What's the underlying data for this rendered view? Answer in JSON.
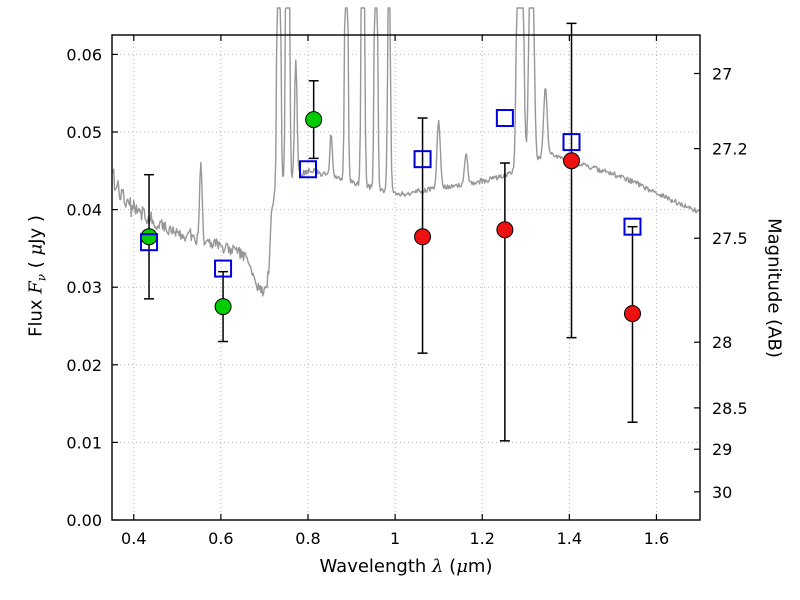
{
  "chart_data": {
    "type": "line+scatter",
    "title": "",
    "xlabel_parts": {
      "pre": "Wavelength  ",
      "sym": "λ",
      "mid": " (",
      "mu": "μ",
      "post": "m)"
    },
    "ylabel_left_parts": {
      "pre": "Flux  ",
      "f": "F",
      "sub": "ν",
      "mid": "  ( ",
      "mu": "μ",
      "post": "Jy )"
    },
    "ylabel_right": "Magnitude (AB)",
    "xlim": [
      0.35,
      1.7
    ],
    "ylim": [
      0.0,
      0.0625
    ],
    "grid": {
      "show": true,
      "style": "dotted",
      "color": "#b5b5b5"
    },
    "x_ticks": [
      {
        "value": 0.4,
        "label": "0.4"
      },
      {
        "value": 0.6,
        "label": "0.6"
      },
      {
        "value": 0.8,
        "label": "0.8"
      },
      {
        "value": 1.0,
        "label": "1"
      },
      {
        "value": 1.2,
        "label": "1.2"
      },
      {
        "value": 1.4,
        "label": "1.4"
      },
      {
        "value": 1.6,
        "label": "1.6"
      }
    ],
    "y_ticks_left": [
      {
        "value": 0.0,
        "label": "0.00"
      },
      {
        "value": 0.01,
        "label": "0.01"
      },
      {
        "value": 0.02,
        "label": "0.02"
      },
      {
        "value": 0.03,
        "label": "0.03"
      },
      {
        "value": 0.04,
        "label": "0.04"
      },
      {
        "value": 0.05,
        "label": "0.05"
      },
      {
        "value": 0.06,
        "label": "0.06"
      }
    ],
    "y_ticks_right": [
      {
        "label": "27",
        "flux": 0.05754
      },
      {
        "label": "27.2",
        "flux": 0.04786
      },
      {
        "label": "27.5",
        "flux": 0.03631
      },
      {
        "label": "28",
        "flux": 0.02291
      },
      {
        "label": "28.5",
        "flux": 0.01445
      },
      {
        "label": "29",
        "flux": 0.00912
      },
      {
        "label": "30",
        "flux": 0.00363
      }
    ],
    "spectrum": {
      "name": "model-spectrum",
      "color": "#979797",
      "linewidth": 1.4,
      "continuum": [
        [
          0.352,
          0.0452
        ],
        [
          0.358,
          0.042
        ],
        [
          0.363,
          0.0441
        ],
        [
          0.368,
          0.0413
        ],
        [
          0.374,
          0.0429
        ],
        [
          0.38,
          0.0407
        ],
        [
          0.387,
          0.0417
        ],
        [
          0.394,
          0.04
        ],
        [
          0.401,
          0.0407
        ],
        [
          0.41,
          0.0394
        ],
        [
          0.42,
          0.0398
        ],
        [
          0.43,
          0.0387
        ],
        [
          0.44,
          0.0391
        ],
        [
          0.45,
          0.0381
        ],
        [
          0.462,
          0.0384
        ],
        [
          0.475,
          0.0375
        ],
        [
          0.488,
          0.0371
        ],
        [
          0.5,
          0.0374
        ],
        [
          0.515,
          0.0365
        ],
        [
          0.53,
          0.0368
        ],
        [
          0.545,
          0.0361
        ],
        [
          0.56,
          0.036
        ],
        [
          0.575,
          0.0355
        ],
        [
          0.59,
          0.0357
        ],
        [
          0.605,
          0.0351
        ],
        [
          0.62,
          0.0349
        ],
        [
          0.635,
          0.0345
        ],
        [
          0.648,
          0.0343
        ],
        [
          0.66,
          0.0337
        ],
        [
          0.67,
          0.0325
        ],
        [
          0.678,
          0.0309
        ],
        [
          0.686,
          0.0299
        ],
        [
          0.695,
          0.0294
        ],
        [
          0.703,
          0.0297
        ],
        [
          0.71,
          0.032
        ],
        [
          0.716,
          0.0396
        ],
        [
          0.722,
          0.0414
        ],
        [
          0.73,
          0.0424
        ],
        [
          0.74,
          0.0431
        ],
        [
          0.752,
          0.0436
        ],
        [
          0.765,
          0.044
        ],
        [
          0.778,
          0.0444
        ],
        [
          0.79,
          0.0447
        ],
        [
          0.802,
          0.045
        ],
        [
          0.815,
          0.045
        ],
        [
          0.828,
          0.0447
        ],
        [
          0.84,
          0.0445
        ],
        [
          0.853,
          0.0443
        ],
        [
          0.865,
          0.0441
        ],
        [
          0.878,
          0.0439
        ],
        [
          0.89,
          0.0437
        ],
        [
          0.905,
          0.0434
        ],
        [
          0.92,
          0.0432
        ],
        [
          0.935,
          0.043
        ],
        [
          0.95,
          0.0428
        ],
        [
          0.965,
          0.0425
        ],
        [
          0.98,
          0.0423
        ],
        [
          0.995,
          0.0421
        ],
        [
          1.01,
          0.042
        ],
        [
          1.03,
          0.0421
        ],
        [
          1.05,
          0.0423
        ],
        [
          1.07,
          0.0425
        ],
        [
          1.09,
          0.0427
        ],
        [
          1.11,
          0.0429
        ],
        [
          1.13,
          0.0429
        ],
        [
          1.15,
          0.0431
        ],
        [
          1.17,
          0.0433
        ],
        [
          1.19,
          0.0436
        ],
        [
          1.21,
          0.0438
        ],
        [
          1.23,
          0.0441
        ],
        [
          1.25,
          0.0444
        ],
        [
          1.268,
          0.0447
        ],
        [
          1.3,
          0.0455
        ],
        [
          1.32,
          0.0462
        ],
        [
          1.338,
          0.0469
        ],
        [
          1.352,
          0.0472
        ],
        [
          1.368,
          0.047
        ],
        [
          1.385,
          0.0466
        ],
        [
          1.4,
          0.0463
        ],
        [
          1.418,
          0.046
        ],
        [
          1.435,
          0.0457
        ],
        [
          1.452,
          0.0454
        ],
        [
          1.47,
          0.0451
        ],
        [
          1.488,
          0.0448
        ],
        [
          1.505,
          0.0445
        ],
        [
          1.522,
          0.0441
        ],
        [
          1.54,
          0.0437
        ],
        [
          1.558,
          0.0433
        ],
        [
          1.575,
          0.0428
        ],
        [
          1.592,
          0.0424
        ],
        [
          1.61,
          0.0419
        ],
        [
          1.628,
          0.0414
        ],
        [
          1.645,
          0.041
        ],
        [
          1.662,
          0.0406
        ],
        [
          1.68,
          0.0401
        ],
        [
          1.7,
          0.0398
        ]
      ],
      "emission_lines": [
        {
          "center": 0.554,
          "amplitude": 0.0104,
          "sigma": 0.0028
        },
        {
          "center": 0.733,
          "amplitude": 0.075,
          "sigma": 0.003
        },
        {
          "center": 0.753,
          "amplitude": 0.09,
          "sigma": 0.003
        },
        {
          "center": 0.772,
          "amplitude": 0.015,
          "sigma": 0.0028
        },
        {
          "center": 0.853,
          "amplitude": 0.0055,
          "sigma": 0.0028
        },
        {
          "center": 0.888,
          "amplitude": 0.055,
          "sigma": 0.0028
        },
        {
          "center": 0.926,
          "amplitude": 0.068,
          "sigma": 0.0028
        },
        {
          "center": 0.956,
          "amplitude": 0.055,
          "sigma": 0.0028
        },
        {
          "center": 0.986,
          "amplitude": 0.032,
          "sigma": 0.0028
        },
        {
          "center": 1.1,
          "amplitude": 0.009,
          "sigma": 0.0035
        },
        {
          "center": 1.163,
          "amplitude": 0.0042,
          "sigma": 0.0035
        },
        {
          "center": 1.287,
          "amplitude": 0.085,
          "sigma": 0.005
        },
        {
          "center": 1.313,
          "amplitude": 0.045,
          "sigma": 0.0045
        },
        {
          "center": 1.345,
          "amplitude": 0.0085,
          "sigma": 0.004
        }
      ]
    },
    "series": [
      {
        "name": "green-filled-circles",
        "marker": "circle",
        "color": "#00cc00",
        "edge": "#000000",
        "points": [
          {
            "x": 0.435,
            "y": 0.0365,
            "err_lo": 0.0285,
            "err_hi": 0.0445
          },
          {
            "x": 0.605,
            "y": 0.0275,
            "err_lo": 0.023,
            "err_hi": 0.032
          },
          {
            "x": 0.813,
            "y": 0.0516,
            "err_lo": 0.0466,
            "err_hi": 0.0566
          }
        ]
      },
      {
        "name": "red-filled-circles",
        "marker": "circle",
        "color": "#ee1111",
        "edge": "#000000",
        "points": [
          {
            "x": 1.063,
            "y": 0.0365,
            "err_lo": 0.0215,
            "err_hi": 0.0518
          },
          {
            "x": 1.252,
            "y": 0.0374,
            "err_lo": 0.0102,
            "err_hi": 0.046
          },
          {
            "x": 1.405,
            "y": 0.0463,
            "err_lo": 0.0235,
            "err_hi": 0.064
          },
          {
            "x": 1.545,
            "y": 0.0266,
            "err_lo": 0.0126,
            "err_hi": 0.0378
          }
        ]
      },
      {
        "name": "blue-open-squares",
        "marker": "square-open",
        "color": "#0000dd",
        "points": [
          {
            "x": 0.435,
            "y": 0.0358
          },
          {
            "x": 0.605,
            "y": 0.0324
          },
          {
            "x": 0.8,
            "y": 0.0452
          },
          {
            "x": 1.063,
            "y": 0.0465
          },
          {
            "x": 1.252,
            "y": 0.0518
          },
          {
            "x": 1.405,
            "y": 0.0487
          },
          {
            "x": 1.545,
            "y": 0.0378
          }
        ]
      }
    ]
  }
}
